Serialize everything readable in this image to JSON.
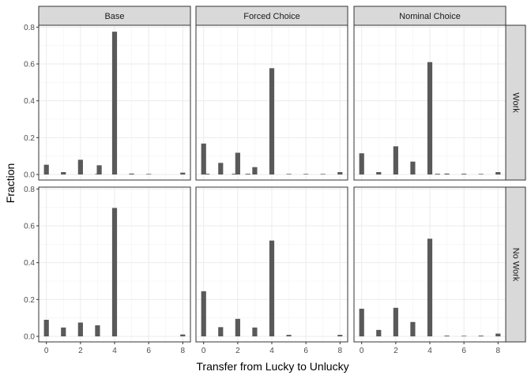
{
  "chart_data": {
    "type": "bar",
    "xlabel": "Transfer from Lucky to Unlucky",
    "ylabel": "Fraction",
    "xlim": [
      -0.45,
      8.45
    ],
    "ylim": [
      -0.03,
      0.81
    ],
    "x_ticks": [
      0,
      2,
      4,
      6,
      8
    ],
    "x_tick_labels": [
      "0",
      "2",
      "4",
      "6",
      "8"
    ],
    "y_ticks": [
      0,
      0.2,
      0.4,
      0.6,
      0.8
    ],
    "y_tick_labels": [
      "0.0",
      "0.2",
      "0.4",
      "0.6",
      "0.8"
    ],
    "grid": true,
    "columns": [
      "Base",
      "Forced Choice",
      "Nominal Choice"
    ],
    "rows": [
      "Work",
      "No Work"
    ],
    "panels": [
      {
        "row": "Work",
        "col": "Base",
        "bars": [
          [
            0,
            0.053
          ],
          [
            1,
            0.013
          ],
          [
            2,
            0.08
          ],
          [
            3,
            0.003
          ],
          [
            3.1,
            0.05
          ],
          [
            4,
            0.775
          ],
          [
            5,
            0.005
          ],
          [
            6,
            0.003
          ],
          [
            8,
            0.01
          ]
        ]
      },
      {
        "row": "Work",
        "col": "Forced Choice",
        "bars": [
          [
            0,
            0.168
          ],
          [
            0.2,
            0.004
          ],
          [
            1,
            0.063
          ],
          [
            1.8,
            0.004
          ],
          [
            2,
            0.118
          ],
          [
            2.6,
            0.004
          ],
          [
            3,
            0.04
          ],
          [
            4,
            0.577
          ],
          [
            5,
            0.003
          ],
          [
            6,
            0.003
          ],
          [
            7,
            0.003
          ],
          [
            8,
            0.013
          ]
        ]
      },
      {
        "row": "Work",
        "col": "Nominal Choice",
        "bars": [
          [
            0,
            0.115
          ],
          [
            1,
            0.013
          ],
          [
            2,
            0.153
          ],
          [
            3,
            0.07
          ],
          [
            4,
            0.61
          ],
          [
            4.45,
            0.004
          ],
          [
            5,
            0.005
          ],
          [
            6,
            0.004
          ],
          [
            7,
            0.003
          ],
          [
            8,
            0.013
          ]
        ]
      },
      {
        "row": "No Work",
        "col": "Base",
        "bars": [
          [
            0,
            0.09
          ],
          [
            1,
            0.048
          ],
          [
            2,
            0.075
          ],
          [
            3,
            0.06
          ],
          [
            4,
            0.697
          ],
          [
            8,
            0.01
          ]
        ]
      },
      {
        "row": "No Work",
        "col": "Forced Choice",
        "bars": [
          [
            0,
            0.245
          ],
          [
            1,
            0.05
          ],
          [
            2,
            0.095
          ],
          [
            3,
            0.048
          ],
          [
            4,
            0.52
          ],
          [
            5,
            0.008
          ],
          [
            8,
            0.008
          ]
        ]
      },
      {
        "row": "No Work",
        "col": "Nominal Choice",
        "bars": [
          [
            0,
            0.15
          ],
          [
            1,
            0.035
          ],
          [
            2,
            0.155
          ],
          [
            3,
            0.078
          ],
          [
            4,
            0.53
          ],
          [
            5,
            0.004
          ],
          [
            6,
            0.003
          ],
          [
            7,
            0.004
          ],
          [
            8,
            0.015
          ]
        ]
      }
    ],
    "bar_color": "#595959"
  }
}
